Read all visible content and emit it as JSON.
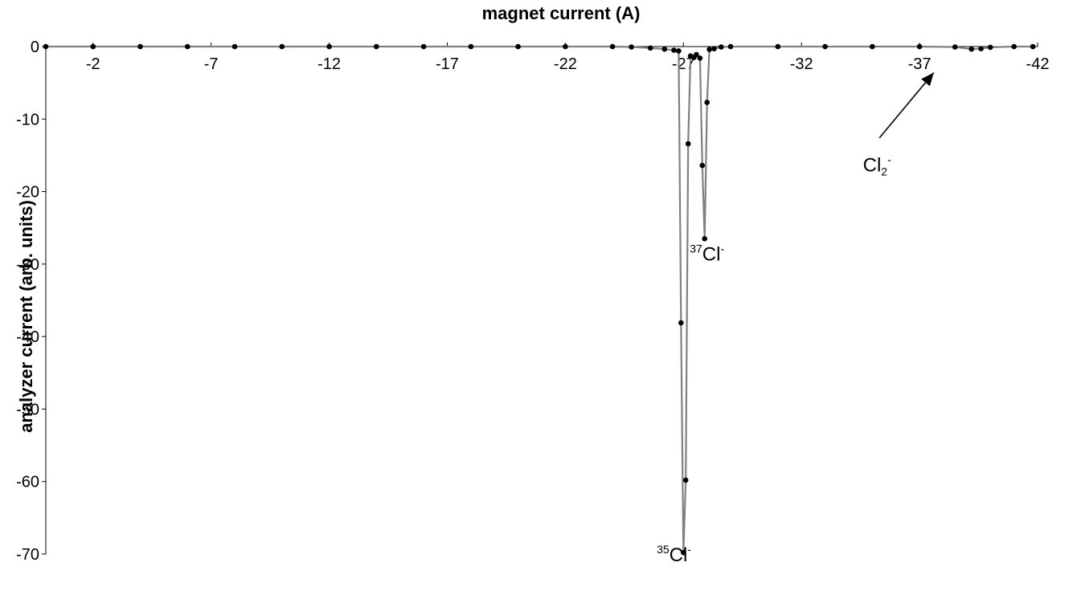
{
  "chart_data": {
    "type": "line",
    "xlabel": "magnet current (A)",
    "ylabel": "analyzer current (arb. units)",
    "xlim": [
      0,
      -42
    ],
    "ylim": [
      -70,
      0
    ],
    "x_ticks": [
      -2,
      -7,
      -12,
      -17,
      -22,
      -27,
      -32,
      -37,
      -42
    ],
    "x_tick_labels": [
      "-2",
      "-7",
      "-12",
      "-17",
      "-22",
      "-27",
      "-32",
      "-37",
      "-42"
    ],
    "y_ticks": [
      0,
      -10,
      -20,
      -30,
      -40,
      -50,
      -60,
      -70
    ],
    "y_tick_labels": [
      "0",
      "-10",
      "-20",
      "-30",
      "-40",
      "-50",
      "-60",
      "-70"
    ],
    "grid": false,
    "series": [
      {
        "points": [
          [
            0,
            0
          ],
          [
            -2,
            0
          ],
          [
            -4,
            0
          ],
          [
            -6,
            0
          ],
          [
            -8,
            0
          ],
          [
            -10,
            0
          ],
          [
            -12,
            0
          ],
          [
            -14,
            0
          ],
          [
            -16,
            0
          ],
          [
            -18,
            0
          ],
          [
            -20,
            0
          ],
          [
            -22,
            0
          ],
          [
            -24,
            0
          ],
          [
            -24.8,
            -0.05
          ],
          [
            -25.6,
            -0.2
          ],
          [
            -26.2,
            -0.35
          ],
          [
            -26.6,
            -0.5
          ],
          [
            -26.8,
            -0.6
          ],
          [
            -26.9,
            -38.1
          ],
          [
            -27.0,
            -69.8
          ],
          [
            -27.1,
            -59.8
          ],
          [
            -27.2,
            -13.4
          ],
          [
            -27.3,
            -1.3
          ],
          [
            -27.45,
            -1.5
          ],
          [
            -27.55,
            -1.1
          ],
          [
            -27.7,
            -1.6
          ],
          [
            -27.8,
            -16.4
          ],
          [
            -27.9,
            -26.5
          ],
          [
            -28.0,
            -7.7
          ],
          [
            -28.1,
            -0.4
          ],
          [
            -28.3,
            -0.3
          ],
          [
            -28.6,
            -0.05
          ],
          [
            -29,
            0
          ],
          [
            -31,
            0
          ],
          [
            -33,
            0
          ],
          [
            -35,
            0
          ],
          [
            -37,
            0
          ],
          [
            -38.5,
            -0.05
          ],
          [
            -39.2,
            -0.35
          ],
          [
            -39.6,
            -0.3
          ],
          [
            -40,
            -0.1
          ],
          [
            -41,
            0
          ],
          [
            -41.8,
            0
          ]
        ]
      }
    ],
    "annotations": [
      {
        "pre": "",
        "sup_pre": "35",
        "main": "Cl",
        "sub": "",
        "sup": "-",
        "x": -26.6,
        "y": -71.0
      },
      {
        "pre": "",
        "sup_pre": "37",
        "main": "Cl",
        "sub": "",
        "sup": "-",
        "x": -28.0,
        "y": -29.5
      },
      {
        "pre": "",
        "sup_pre": "",
        "main": "Cl",
        "sub": "2",
        "sup": "-",
        "x": -35.2,
        "y": -17.2
      }
    ],
    "arrow": {
      "from": [
        -35.3,
        -12.6
      ],
      "to": [
        -37.6,
        -3.6
      ]
    }
  }
}
